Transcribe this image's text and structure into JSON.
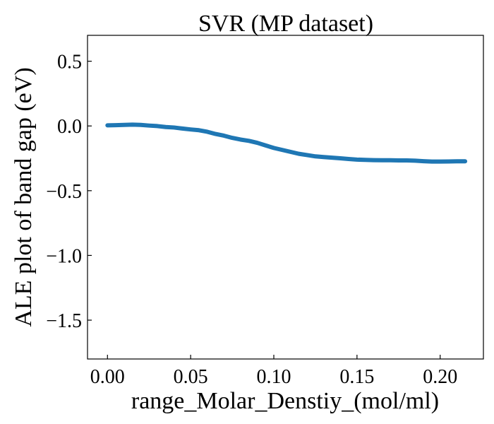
{
  "chart_data": {
    "type": "line",
    "title": "SVR (MP dataset)",
    "xlabel": "range_Molar_Denstiy_(mol/ml)",
    "ylabel": "ALE plot of band gap (eV)",
    "xlim": [
      -0.012,
      0.226
    ],
    "ylim": [
      -1.8,
      0.7
    ],
    "xticks": [
      0.0,
      0.05,
      0.1,
      0.15,
      0.2
    ],
    "xtick_labels": [
      "0.00",
      "0.05",
      "0.10",
      "0.15",
      "0.20"
    ],
    "yticks": [
      0.5,
      0.0,
      -0.5,
      -1.0,
      -1.5
    ],
    "ytick_labels": [
      "0.5",
      "0.0",
      "−0.5",
      "−1.0",
      "−1.5"
    ],
    "grid": false,
    "series": [
      {
        "color": "#1f77b4",
        "x": [
          0.0,
          0.005,
          0.01,
          0.015,
          0.02,
          0.025,
          0.03,
          0.035,
          0.04,
          0.045,
          0.05,
          0.055,
          0.06,
          0.065,
          0.07,
          0.075,
          0.08,
          0.085,
          0.09,
          0.095,
          0.1,
          0.105,
          0.11,
          0.115,
          0.12,
          0.125,
          0.13,
          0.135,
          0.14,
          0.145,
          0.15,
          0.155,
          0.16,
          0.165,
          0.17,
          0.175,
          0.18,
          0.185,
          0.19,
          0.195,
          0.2,
          0.205,
          0.21,
          0.215
        ],
        "y": [
          0.005,
          0.006,
          0.008,
          0.01,
          0.008,
          0.003,
          -0.001,
          -0.008,
          -0.012,
          -0.02,
          -0.027,
          -0.033,
          -0.045,
          -0.062,
          -0.075,
          -0.092,
          -0.105,
          -0.115,
          -0.13,
          -0.15,
          -0.17,
          -0.185,
          -0.2,
          -0.215,
          -0.225,
          -0.235,
          -0.24,
          -0.245,
          -0.25,
          -0.255,
          -0.26,
          -0.262,
          -0.264,
          -0.265,
          -0.265,
          -0.266,
          -0.266,
          -0.268,
          -0.272,
          -0.275,
          -0.275,
          -0.274,
          -0.273,
          -0.273
        ]
      }
    ]
  }
}
